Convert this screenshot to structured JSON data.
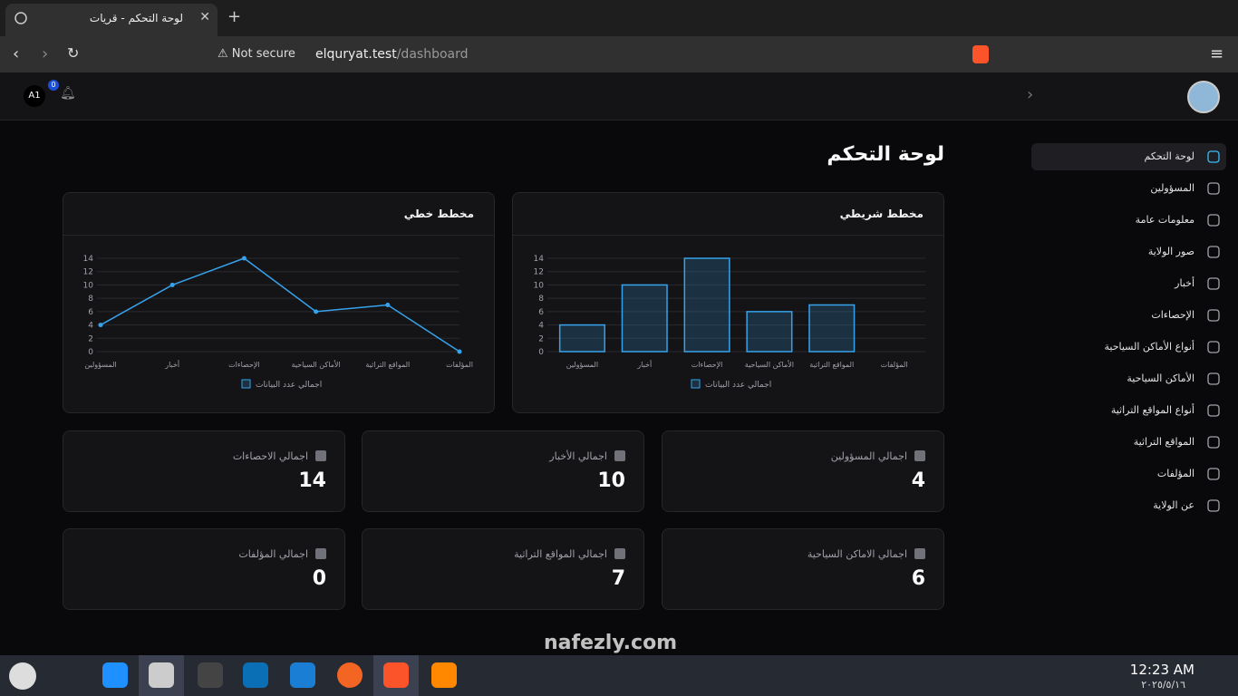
{
  "browser": {
    "tab_title": "لوحة التحكم - قريات",
    "not_secure": "Not secure",
    "url_host": "elquryat.test",
    "url_path": "/dashboard"
  },
  "topbar": {
    "avatar": "A1",
    "notifications": "0"
  },
  "page_title": "لوحة التحكم",
  "sidebar": [
    "لوحة التحكم",
    "المسؤولين",
    "معلومات عامة",
    "صور الولاية",
    "أخبار",
    "الإحصاءات",
    "أنواع الأماكن السياحية",
    "الأماكن السياحية",
    "أنواع المواقع التراثية",
    "المواقع التراثية",
    "المؤلفات",
    "عن الولاية"
  ],
  "chart_data": [
    {
      "type": "bar",
      "title": "مخطط شريطي",
      "categories": [
        "المسؤولين",
        "أخبار",
        "الإحصاءات",
        "الأماكن السياحية",
        "المواقع التراثية",
        "المؤلفات"
      ],
      "series": [
        {
          "name": "اجمالي عدد البيانات",
          "color": "#36a2eb",
          "values": [
            4,
            10,
            14,
            6,
            7,
            0
          ]
        }
      ],
      "ylim": [
        0,
        14
      ],
      "yticks": [
        0,
        2,
        4,
        6,
        8,
        10,
        12,
        14
      ],
      "grid": true
    },
    {
      "type": "line",
      "title": "مخطط خطي",
      "categories": [
        "المسؤولين",
        "أخبار",
        "الإحصاءات",
        "الأماكن السياحية",
        "المواقع التراثية",
        "المؤلفات"
      ],
      "series": [
        {
          "name": "اجمالي عدد البيانات",
          "color": "#36a2eb",
          "values": [
            4,
            10,
            14,
            6,
            7,
            0
          ]
        }
      ],
      "ylim": [
        0,
        14
      ],
      "yticks": [
        0,
        2,
        4,
        6,
        8,
        10,
        12,
        14
      ],
      "grid": true
    }
  ],
  "stats": [
    {
      "label": "اجمالي المسؤولين",
      "value": 4
    },
    {
      "label": "اجمالي الأخبار",
      "value": 10
    },
    {
      "label": "اجمالي الاحصاءات",
      "value": 14
    },
    {
      "label": "اجمالي الاماكن السياحية",
      "value": 6
    },
    {
      "label": "اجمالي المواقع التراثية",
      "value": 7
    },
    {
      "label": "اجمالي المؤلفات",
      "value": 0
    }
  ],
  "taskbar": {
    "time": "12:23 AM",
    "date": "٢٠٢٥/٥/١٦"
  },
  "watermark": "nafezly.com"
}
